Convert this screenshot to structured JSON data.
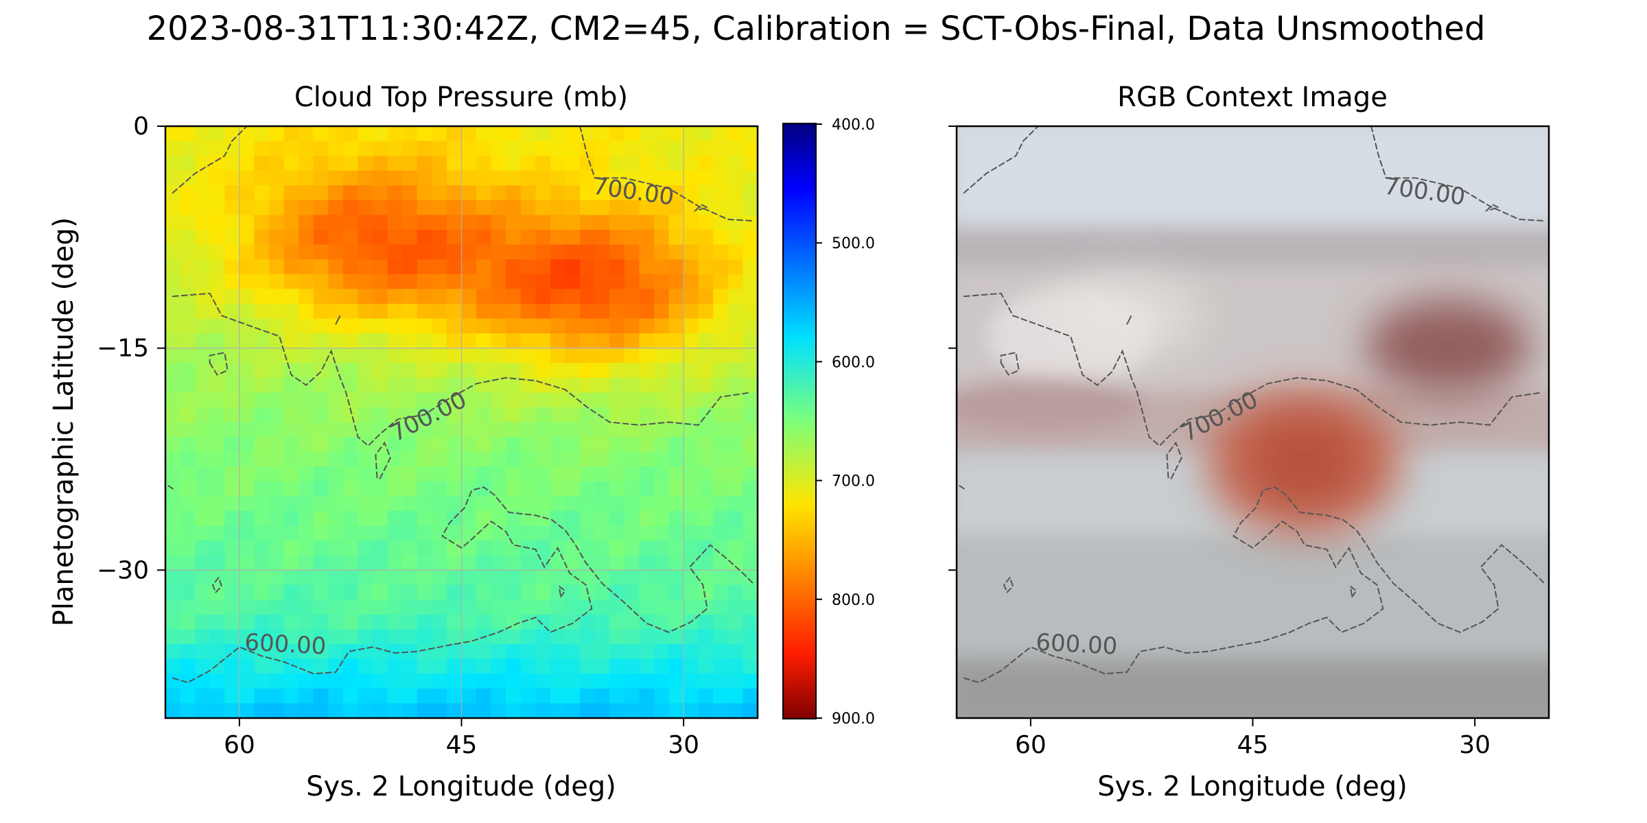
{
  "figure": {
    "suptitle": "2023-08-31T11:30:42Z, CM2=45, Calibration = SCT-Obs-Final, Data Unsmoothed"
  },
  "chart_data": [
    {
      "type": "heatmap",
      "title": "Cloud Top Pressure (mb)",
      "xlabel": "Sys. 2 Longitude (deg)",
      "ylabel": "Planetographic Latitude (deg)",
      "xlim": [
        65,
        25
      ],
      "ylim": [
        -40,
        0
      ],
      "xticks": [
        60,
        45,
        30
      ],
      "yticks": [
        0,
        -15,
        -30
      ],
      "xticklabels": [
        "60",
        "45",
        "30"
      ],
      "yticklabels": [
        "0",
        "−15",
        "−30"
      ],
      "grid": true,
      "colormap": "jet (reversed)",
      "colorbar": {
        "range": [
          400,
          900
        ],
        "ticks": [
          400,
          500,
          600,
          700,
          800,
          900
        ],
        "ticklabels": [
          "400.0",
          "500.0",
          "600.0",
          "700.0",
          "800.0",
          "900.0"
        ],
        "orientation": "vertical",
        "inverted": true
      },
      "contours": [
        {
          "level": 700,
          "label": "700.00",
          "style": "dashed"
        },
        {
          "level": 600,
          "label": "600.00",
          "style": "dashed"
        }
      ],
      "features": [
        {
          "name": "high-pressure patch",
          "lon": 51,
          "lat": -8,
          "value": 780
        },
        {
          "name": "high-pressure patch",
          "lon": 36,
          "lat": -11,
          "value": 795
        },
        {
          "name": "low-pressure band",
          "lon": 40,
          "lat": -38,
          "value": 560
        }
      ]
    },
    {
      "type": "heatmap",
      "title": "RGB Context Image",
      "xlabel": "Sys. 2 Longitude (deg)",
      "xlim": [
        65,
        25
      ],
      "ylim": [
        -40,
        0
      ],
      "xticks": [
        60,
        45,
        30
      ],
      "xticklabels": [
        "60",
        "45",
        "30"
      ],
      "contours": [
        {
          "level": 700,
          "label": "700.00",
          "style": "dashed"
        },
        {
          "level": 600,
          "label": "600.00",
          "style": "dashed"
        }
      ]
    }
  ],
  "colors": {
    "contour": "#555555",
    "spot": "#c0604a",
    "band": "#a99a98"
  }
}
